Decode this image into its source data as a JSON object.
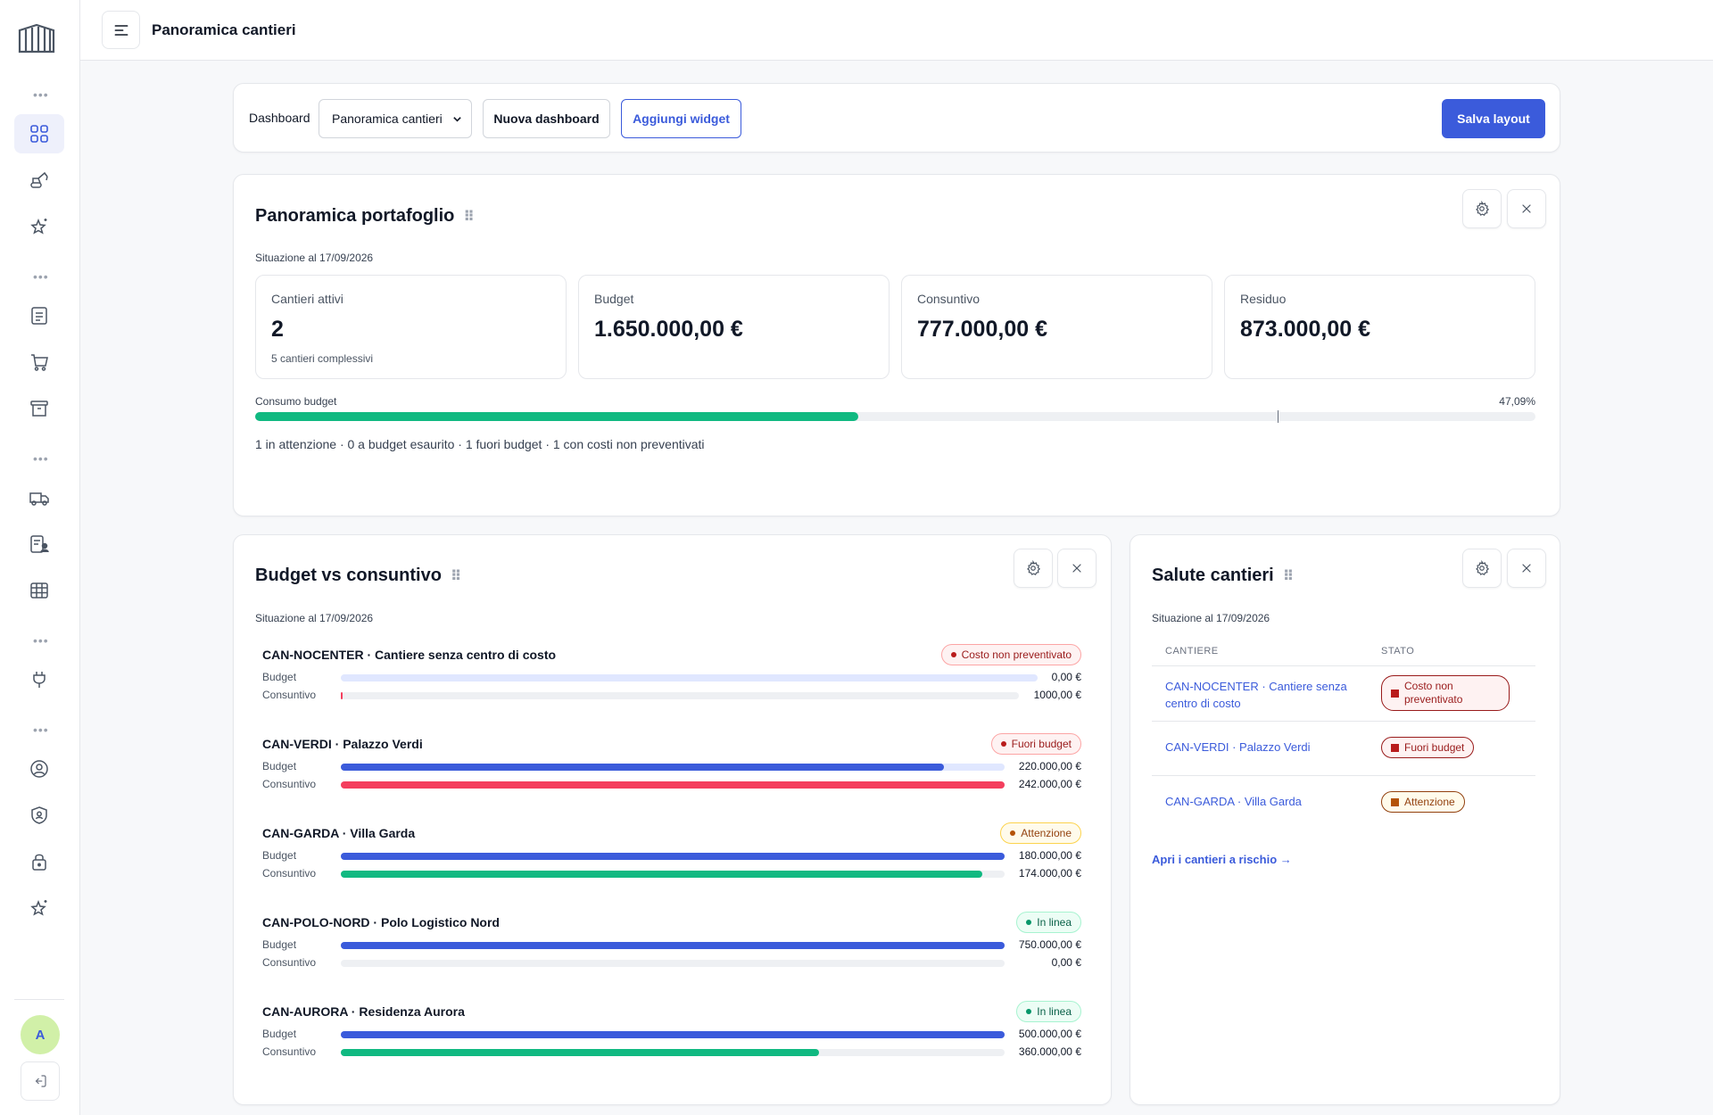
{
  "header": {
    "title": "Panoramica cantieri"
  },
  "sidebar": {
    "avatar_initial": "A"
  },
  "toolbar": {
    "dashboard_label": "Dashboard",
    "dashboard_selected": "Panoramica cantieri",
    "new_dashboard": "Nuova dashboard",
    "add_widget": "Aggiungi widget",
    "save_layout": "Salva layout"
  },
  "portfolio": {
    "title": "Panoramica portafoglio",
    "as_of": "Situazione al 17/09/2026",
    "kpis": [
      {
        "label": "Cantieri attivi",
        "value": "2",
        "note": "5 cantieri complessivi"
      },
      {
        "label": "Budget",
        "value": "1.650.000,00 €",
        "note": ""
      },
      {
        "label": "Consuntivo",
        "value": "777.000,00 €",
        "note": ""
      },
      {
        "label": "Residuo",
        "value": "873.000,00 €",
        "note": ""
      }
    ],
    "consumption_label": "Consumo budget",
    "consumption_pct_text": "47,09%",
    "consumption_fraction": 0.4709,
    "summary": "1 in attenzione · 0 a budget esaurito · 1 fuori budget · 1 con costi non preventivati"
  },
  "budget_vs": {
    "title": "Budget vs consuntivo",
    "as_of": "Situazione al 17/09/2026",
    "budget_label": "Budget",
    "actual_label": "Consuntivo",
    "projects": [
      {
        "name": "CAN-NOCENTER · Cantiere senza centro di costo",
        "badge": "Costo non preventivato",
        "budget_text": "0,00 €",
        "actual_text": "1000,00 €",
        "budget": 0,
        "actual": 1000
      },
      {
        "name": "CAN-VERDI · Palazzo Verdi",
        "badge": "Fuori budget",
        "budget_text": "220.000,00 €",
        "actual_text": "242.000,00 €",
        "budget": 220000,
        "actual": 242000
      },
      {
        "name": "CAN-GARDA · Villa Garda",
        "badge": "Attenzione",
        "budget_text": "180.000,00 €",
        "actual_text": "174.000,00 €",
        "budget": 180000,
        "actual": 174000
      },
      {
        "name": "CAN-POLO-NORD · Polo Logistico Nord",
        "badge": "In linea",
        "budget_text": "750.000,00 €",
        "actual_text": "0,00 €",
        "budget": 750000,
        "actual": 0
      },
      {
        "name": "CAN-AURORA · Residenza Aurora",
        "badge": "In linea",
        "budget_text": "500.000,00 €",
        "actual_text": "360.000,00 €",
        "budget": 500000,
        "actual": 360000
      }
    ]
  },
  "health": {
    "title": "Salute cantieri",
    "as_of": "Situazione al 17/09/2026",
    "col_site": "CANTIERE",
    "col_status": "STATO",
    "rows": [
      {
        "site_line1": "CAN-NOCENTER · Cantiere senza",
        "site_line2": "centro di costo",
        "status_line1": "Costo non",
        "status_line2": "preventivato"
      },
      {
        "site_line1": "CAN-VERDI · Palazzo Verdi",
        "site_line2": "",
        "status_line1": "Fuori budget",
        "status_line2": ""
      },
      {
        "site_line1": "CAN-GARDA · Villa Garda",
        "site_line2": "",
        "status_line1": "Attenzione",
        "status_line2": ""
      }
    ],
    "risk_link": "Apri i cantieri a rischio →"
  },
  "colors": {
    "accent": "#3b5bdb",
    "success": "#10b981",
    "danger": "#f43f5e",
    "warning": "#b45309"
  }
}
